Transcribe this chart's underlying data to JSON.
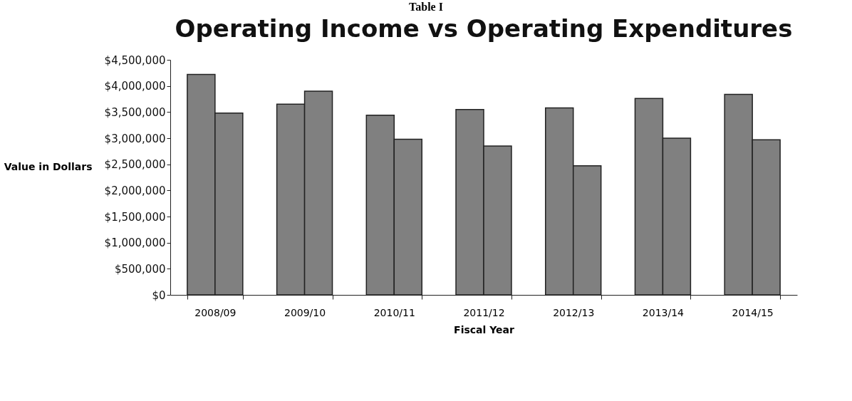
{
  "chart_data": {
    "type": "bar",
    "title": "Operating Income vs Operating Expenditures",
    "xlabel": "Fiscal Year",
    "ylabel": "Value in Dollars",
    "annotations": [
      "Table I"
    ],
    "categories": [
      "2008/09",
      "2009/10",
      "2010/11",
      "2011/12",
      "2012/13",
      "2013/14",
      "2014/15"
    ],
    "series": [
      {
        "color": "#808080",
        "values": [
          4220000,
          3650000,
          3440000,
          3550000,
          3580000,
          3760000,
          3840000
        ]
      },
      {
        "color": "#808080",
        "values": [
          3480000,
          3900000,
          2980000,
          2850000,
          2470000,
          3000000,
          2970000
        ]
      }
    ],
    "ylim": [
      0,
      4500000
    ],
    "yticks": [
      {
        "value": 0,
        "label": "$0"
      },
      {
        "value": 500000,
        "label": "$500,000"
      },
      {
        "value": 1000000,
        "label": "$1,000,000"
      },
      {
        "value": 1500000,
        "label": "$1,500,000"
      },
      {
        "value": 2000000,
        "label": "$2,000,000"
      },
      {
        "value": 2500000,
        "label": "$2,500,000"
      },
      {
        "value": 3000000,
        "label": "$3,000,000"
      },
      {
        "value": 3500000,
        "label": "$3,500,000"
      },
      {
        "value": 4000000,
        "label": "$4,000,000"
      },
      {
        "value": 4500000,
        "label": "$4,500,000"
      }
    ],
    "grid": false,
    "legend": false
  }
}
